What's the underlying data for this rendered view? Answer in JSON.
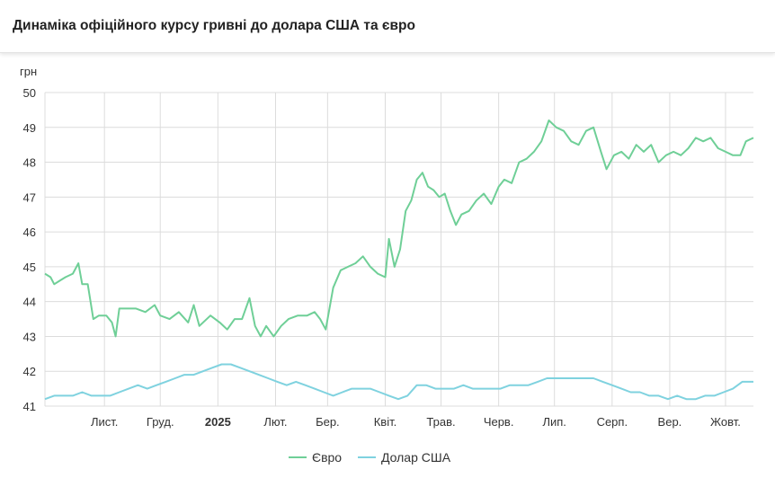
{
  "header": {
    "title": "Динаміка офіційного курсу гривні до долара США та євро"
  },
  "chart_data": {
    "type": "line",
    "title": "Динаміка офіційного курсу гривні до долара США та євро",
    "ylabel": "грн",
    "xlabel": "",
    "ylim": [
      41,
      50
    ],
    "xlim": [
      "2024-09-30",
      "2025-10-16"
    ],
    "grid": true,
    "legend_position": "bottom",
    "y_ticks": [
      41,
      42,
      43,
      44,
      45,
      46,
      47,
      48,
      49,
      50
    ],
    "x_ticks": [
      {
        "label": "Лист.",
        "date": "2024-11-01"
      },
      {
        "label": "Груд.",
        "date": "2024-12-01"
      },
      {
        "label": "2025",
        "date": "2025-01-01",
        "bold": true
      },
      {
        "label": "Лют.",
        "date": "2025-02-01"
      },
      {
        "label": "Бер.",
        "date": "2025-03-01"
      },
      {
        "label": "Квіт.",
        "date": "2025-04-01"
      },
      {
        "label": "Трав.",
        "date": "2025-05-01"
      },
      {
        "label": "Черв.",
        "date": "2025-06-01"
      },
      {
        "label": "Лип.",
        "date": "2025-07-01"
      },
      {
        "label": "Серп.",
        "date": "2025-08-01"
      },
      {
        "label": "Вер.",
        "date": "2025-09-01"
      },
      {
        "label": "Жовт.",
        "date": "2025-10-01"
      }
    ],
    "series": [
      {
        "name": "Євро",
        "color": "#6fcf97",
        "points": [
          [
            "2024-09-30",
            44.8
          ],
          [
            "2024-10-03",
            44.7
          ],
          [
            "2024-10-05",
            44.5
          ],
          [
            "2024-10-08",
            44.6
          ],
          [
            "2024-10-11",
            44.7
          ],
          [
            "2024-10-15",
            44.8
          ],
          [
            "2024-10-18",
            45.1
          ],
          [
            "2024-10-20",
            44.5
          ],
          [
            "2024-10-23",
            44.5
          ],
          [
            "2024-10-26",
            43.5
          ],
          [
            "2024-10-29",
            43.6
          ],
          [
            "2024-11-02",
            43.6
          ],
          [
            "2024-11-05",
            43.4
          ],
          [
            "2024-11-07",
            43.0
          ],
          [
            "2024-11-09",
            43.8
          ],
          [
            "2024-11-13",
            43.8
          ],
          [
            "2024-11-18",
            43.8
          ],
          [
            "2024-11-23",
            43.7
          ],
          [
            "2024-11-28",
            43.9
          ],
          [
            "2024-12-01",
            43.6
          ],
          [
            "2024-12-06",
            43.5
          ],
          [
            "2024-12-11",
            43.7
          ],
          [
            "2024-12-16",
            43.4
          ],
          [
            "2024-12-19",
            43.9
          ],
          [
            "2024-12-22",
            43.3
          ],
          [
            "2024-12-28",
            43.6
          ],
          [
            "2025-01-02",
            43.4
          ],
          [
            "2025-01-06",
            43.2
          ],
          [
            "2025-01-10",
            43.5
          ],
          [
            "2025-01-14",
            43.5
          ],
          [
            "2025-01-18",
            44.1
          ],
          [
            "2025-01-21",
            43.3
          ],
          [
            "2025-01-24",
            43.0
          ],
          [
            "2025-01-27",
            43.3
          ],
          [
            "2025-01-31",
            43.0
          ],
          [
            "2025-02-04",
            43.3
          ],
          [
            "2025-02-08",
            43.5
          ],
          [
            "2025-02-13",
            43.6
          ],
          [
            "2025-02-18",
            43.6
          ],
          [
            "2025-02-22",
            43.7
          ],
          [
            "2025-02-25",
            43.5
          ],
          [
            "2025-02-28",
            43.2
          ],
          [
            "2025-03-04",
            44.4
          ],
          [
            "2025-03-08",
            44.9
          ],
          [
            "2025-03-12",
            45.0
          ],
          [
            "2025-03-16",
            45.1
          ],
          [
            "2025-03-20",
            45.3
          ],
          [
            "2025-03-24",
            45.0
          ],
          [
            "2025-03-28",
            44.8
          ],
          [
            "2025-04-01",
            44.7
          ],
          [
            "2025-04-03",
            45.8
          ],
          [
            "2025-04-06",
            45.0
          ],
          [
            "2025-04-09",
            45.5
          ],
          [
            "2025-04-12",
            46.6
          ],
          [
            "2025-04-15",
            46.9
          ],
          [
            "2025-04-18",
            47.5
          ],
          [
            "2025-04-21",
            47.7
          ],
          [
            "2025-04-24",
            47.3
          ],
          [
            "2025-04-27",
            47.2
          ],
          [
            "2025-04-30",
            47.0
          ],
          [
            "2025-05-03",
            47.1
          ],
          [
            "2025-05-06",
            46.6
          ],
          [
            "2025-05-09",
            46.2
          ],
          [
            "2025-05-12",
            46.5
          ],
          [
            "2025-05-16",
            46.6
          ],
          [
            "2025-05-20",
            46.9
          ],
          [
            "2025-05-24",
            47.1
          ],
          [
            "2025-05-28",
            46.8
          ],
          [
            "2025-06-01",
            47.3
          ],
          [
            "2025-06-04",
            47.5
          ],
          [
            "2025-06-08",
            47.4
          ],
          [
            "2025-06-12",
            48.0
          ],
          [
            "2025-06-16",
            48.1
          ],
          [
            "2025-06-20",
            48.3
          ],
          [
            "2025-06-24",
            48.6
          ],
          [
            "2025-06-28",
            49.2
          ],
          [
            "2025-07-02",
            49.0
          ],
          [
            "2025-07-06",
            48.9
          ],
          [
            "2025-07-10",
            48.6
          ],
          [
            "2025-07-14",
            48.5
          ],
          [
            "2025-07-18",
            48.9
          ],
          [
            "2025-07-22",
            49.0
          ],
          [
            "2025-07-26",
            48.3
          ],
          [
            "2025-07-29",
            47.8
          ],
          [
            "2025-08-02",
            48.2
          ],
          [
            "2025-08-06",
            48.3
          ],
          [
            "2025-08-10",
            48.1
          ],
          [
            "2025-08-14",
            48.5
          ],
          [
            "2025-08-18",
            48.3
          ],
          [
            "2025-08-22",
            48.5
          ],
          [
            "2025-08-26",
            48.0
          ],
          [
            "2025-08-30",
            48.2
          ],
          [
            "2025-09-03",
            48.3
          ],
          [
            "2025-09-07",
            48.2
          ],
          [
            "2025-09-11",
            48.4
          ],
          [
            "2025-09-15",
            48.7
          ],
          [
            "2025-09-19",
            48.6
          ],
          [
            "2025-09-23",
            48.7
          ],
          [
            "2025-09-27",
            48.4
          ],
          [
            "2025-10-01",
            48.3
          ],
          [
            "2025-10-05",
            48.2
          ],
          [
            "2025-10-09",
            48.2
          ],
          [
            "2025-10-12",
            48.6
          ],
          [
            "2025-10-16",
            48.7
          ]
        ]
      },
      {
        "name": "Долар США",
        "color": "#7fd2df",
        "points": [
          [
            "2024-09-30",
            41.2
          ],
          [
            "2024-10-05",
            41.3
          ],
          [
            "2024-10-10",
            41.3
          ],
          [
            "2024-10-15",
            41.3
          ],
          [
            "2024-10-20",
            41.4
          ],
          [
            "2024-10-25",
            41.3
          ],
          [
            "2024-10-30",
            41.3
          ],
          [
            "2024-11-04",
            41.3
          ],
          [
            "2024-11-09",
            41.4
          ],
          [
            "2024-11-14",
            41.5
          ],
          [
            "2024-11-19",
            41.6
          ],
          [
            "2024-11-24",
            41.5
          ],
          [
            "2024-11-29",
            41.6
          ],
          [
            "2024-12-04",
            41.7
          ],
          [
            "2024-12-09",
            41.8
          ],
          [
            "2024-12-14",
            41.9
          ],
          [
            "2024-12-19",
            41.9
          ],
          [
            "2024-12-24",
            42.0
          ],
          [
            "2024-12-29",
            42.1
          ],
          [
            "2025-01-03",
            42.2
          ],
          [
            "2025-01-08",
            42.2
          ],
          [
            "2025-01-13",
            42.1
          ],
          [
            "2025-01-18",
            42.0
          ],
          [
            "2025-01-23",
            41.9
          ],
          [
            "2025-01-28",
            41.8
          ],
          [
            "2025-02-02",
            41.7
          ],
          [
            "2025-02-07",
            41.6
          ],
          [
            "2025-02-12",
            41.7
          ],
          [
            "2025-02-17",
            41.6
          ],
          [
            "2025-02-22",
            41.5
          ],
          [
            "2025-02-27",
            41.4
          ],
          [
            "2025-03-04",
            41.3
          ],
          [
            "2025-03-09",
            41.4
          ],
          [
            "2025-03-14",
            41.5
          ],
          [
            "2025-03-19",
            41.5
          ],
          [
            "2025-03-24",
            41.5
          ],
          [
            "2025-03-29",
            41.4
          ],
          [
            "2025-04-03",
            41.3
          ],
          [
            "2025-04-08",
            41.2
          ],
          [
            "2025-04-13",
            41.3
          ],
          [
            "2025-04-18",
            41.6
          ],
          [
            "2025-04-23",
            41.6
          ],
          [
            "2025-04-28",
            41.5
          ],
          [
            "2025-05-03",
            41.5
          ],
          [
            "2025-05-08",
            41.5
          ],
          [
            "2025-05-13",
            41.6
          ],
          [
            "2025-05-18",
            41.5
          ],
          [
            "2025-05-23",
            41.5
          ],
          [
            "2025-05-28",
            41.5
          ],
          [
            "2025-06-02",
            41.5
          ],
          [
            "2025-06-07",
            41.6
          ],
          [
            "2025-06-12",
            41.6
          ],
          [
            "2025-06-17",
            41.6
          ],
          [
            "2025-06-22",
            41.7
          ],
          [
            "2025-06-27",
            41.8
          ],
          [
            "2025-07-02",
            41.8
          ],
          [
            "2025-07-07",
            41.8
          ],
          [
            "2025-07-12",
            41.8
          ],
          [
            "2025-07-17",
            41.8
          ],
          [
            "2025-07-22",
            41.8
          ],
          [
            "2025-07-27",
            41.7
          ],
          [
            "2025-08-01",
            41.6
          ],
          [
            "2025-08-06",
            41.5
          ],
          [
            "2025-08-11",
            41.4
          ],
          [
            "2025-08-16",
            41.4
          ],
          [
            "2025-08-21",
            41.3
          ],
          [
            "2025-08-26",
            41.3
          ],
          [
            "2025-08-31",
            41.2
          ],
          [
            "2025-09-05",
            41.3
          ],
          [
            "2025-09-10",
            41.2
          ],
          [
            "2025-09-15",
            41.2
          ],
          [
            "2025-09-20",
            41.3
          ],
          [
            "2025-09-25",
            41.3
          ],
          [
            "2025-09-30",
            41.4
          ],
          [
            "2025-10-05",
            41.5
          ],
          [
            "2025-10-10",
            41.7
          ],
          [
            "2025-10-16",
            41.7
          ]
        ]
      }
    ]
  }
}
